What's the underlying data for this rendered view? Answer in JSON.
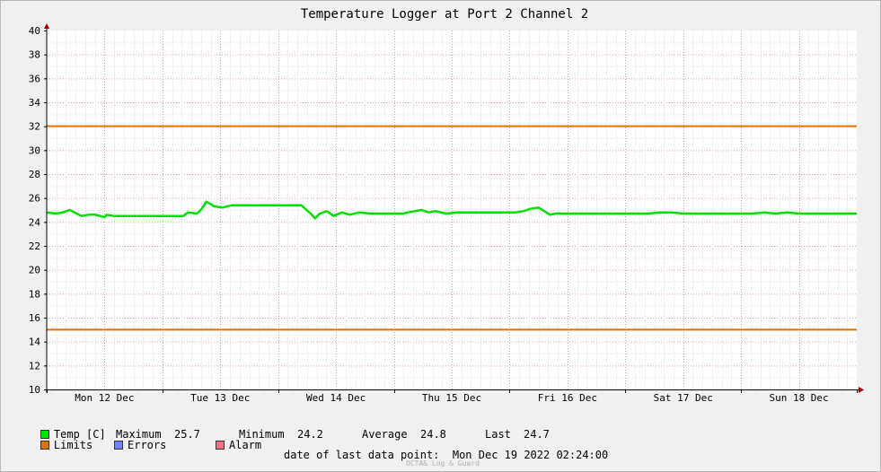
{
  "chart_data": {
    "type": "line",
    "title": "Temperature Logger at Port 2 Channel 2",
    "xlabel": "",
    "ylabel": "",
    "ylim": [
      10,
      40
    ],
    "yticks": [
      10,
      12,
      14,
      16,
      18,
      20,
      22,
      24,
      26,
      28,
      30,
      32,
      34,
      36,
      38,
      40
    ],
    "xlim": [
      0,
      7
    ],
    "day_labels": [
      "Mon 12 Dec",
      "Tue 13 Dec",
      "Wed 14 Dec",
      "Thu 15 Dec",
      "Fri 16 Dec",
      "Sat 17 Dec",
      "Sun 18 Dec"
    ],
    "grid": true,
    "legend_placement": "bottom",
    "series": [
      {
        "name": "Temp [C]",
        "color": "#00e000",
        "x": [
          0.0,
          0.08,
          0.14,
          0.2,
          0.24,
          0.3,
          0.36,
          0.42,
          0.5,
          0.52,
          0.58,
          0.64,
          0.7,
          0.8,
          0.9,
          1.0,
          1.1,
          1.18,
          1.22,
          1.3,
          1.34,
          1.38,
          1.45,
          1.52,
          1.6,
          1.68,
          1.75,
          1.82,
          1.9,
          2.0,
          2.1,
          2.2,
          2.28,
          2.32,
          2.36,
          2.42,
          2.48,
          2.55,
          2.62,
          2.7,
          2.8,
          2.9,
          3.0,
          3.08,
          3.12,
          3.18,
          3.24,
          3.3,
          3.36,
          3.45,
          3.55,
          3.65,
          3.75,
          3.85,
          3.95,
          4.05,
          4.12,
          4.18,
          4.25,
          4.3,
          4.35,
          4.4,
          4.5,
          4.6,
          4.7,
          4.8,
          4.9,
          5.0,
          5.1,
          5.2,
          5.3,
          5.4,
          5.5,
          5.6,
          5.7,
          5.8,
          5.9,
          6.0,
          6.1,
          6.2,
          6.3,
          6.4,
          6.5,
          6.6,
          6.7,
          6.8,
          6.9,
          7.0
        ],
        "y": [
          24.8,
          24.7,
          24.8,
          25.0,
          24.8,
          24.5,
          24.6,
          24.6,
          24.4,
          24.6,
          24.5,
          24.5,
          24.5,
          24.5,
          24.5,
          24.5,
          24.5,
          24.5,
          24.8,
          24.7,
          25.1,
          25.7,
          25.3,
          25.2,
          25.4,
          25.4,
          25.4,
          25.4,
          25.4,
          25.4,
          25.4,
          25.4,
          24.7,
          24.3,
          24.7,
          24.9,
          24.5,
          24.8,
          24.6,
          24.8,
          24.7,
          24.7,
          24.7,
          24.7,
          24.8,
          24.9,
          25.0,
          24.8,
          24.9,
          24.7,
          24.8,
          24.8,
          24.8,
          24.8,
          24.8,
          24.8,
          24.9,
          25.1,
          25.2,
          24.9,
          24.6,
          24.7,
          24.7,
          24.7,
          24.7,
          24.7,
          24.7,
          24.7,
          24.7,
          24.7,
          24.8,
          24.8,
          24.7,
          24.7,
          24.7,
          24.7,
          24.7,
          24.7,
          24.7,
          24.8,
          24.7,
          24.8,
          24.7,
          24.7,
          24.7,
          24.7,
          24.7,
          24.7
        ]
      }
    ],
    "limits": {
      "upper": 32,
      "lower": 15,
      "color": "#e07000"
    }
  },
  "legend": {
    "row1": {
      "temp_label": "Temp [C]",
      "maximum_label": "Maximum",
      "maximum_value": "25.7",
      "minimum_label": "Minimum",
      "minimum_value": "24.2",
      "average_label": "Average",
      "average_value": "24.8",
      "last_label": "Last",
      "last_value": "24.7"
    },
    "row2": {
      "limits_label": "Limits",
      "errors_label": "Errors",
      "alarm_label": "Alarm"
    },
    "colors": {
      "temp": "#00e000",
      "limits": "#e07000",
      "errors": "#7080ff",
      "alarm": "#ff7080"
    }
  },
  "footer": {
    "date_label": "date of last data point:",
    "date_value": "Mon Dec 19 2022 02:24:00",
    "watermark": "OCTA& Log & Guard"
  }
}
